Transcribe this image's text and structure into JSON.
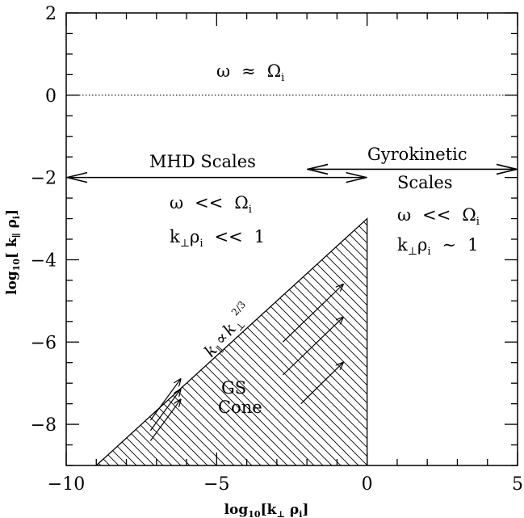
{
  "chart_data": {
    "type": "diagram",
    "xlabel": {
      "main": "log",
      "sub": "10",
      "rest": "[k",
      "perp": "⊥",
      "rho": " ρ",
      "i": "i",
      "end": "]"
    },
    "ylabel": {
      "main": "log",
      "sub": "10",
      "rest": "[ k",
      "par": "∥",
      "rho": " ρ",
      "i": "i",
      "end": "]"
    },
    "xlim": [
      -10,
      5
    ],
    "ylim": [
      -9,
      2
    ],
    "x_ticks": [
      "−10",
      "−5",
      "0",
      "5"
    ],
    "y_ticks": [
      "2",
      "0",
      "−2",
      "−4",
      "−6",
      "−8"
    ],
    "dotted_line": {
      "y": 0
    },
    "mhd_arrow": {
      "y": -2,
      "x_from": -10,
      "x_to": 0
    },
    "gk_arrow": {
      "y": -1.8,
      "x_from": -2,
      "x_to": 5
    },
    "cone": {
      "boundary_points": [
        [
          -9,
          -9
        ],
        [
          0,
          -3
        ]
      ],
      "right_x": 0,
      "slope_label": {
        "k": "k",
        "par": "∥",
        "prop": "∝",
        "k2": "k",
        "perp": "⊥",
        "exp": "2/3"
      }
    },
    "labels": {
      "omega_approx": {
        "omega": "ω",
        "approx": "≈",
        "Omega": "Ω",
        "sub": "i"
      },
      "mhd_title": "MHD Scales",
      "mhd_cond1": {
        "omega": "ω",
        "ll": "<<",
        "Omega": "Ω",
        "sub": "i"
      },
      "mhd_cond2": {
        "k": "k",
        "perp": "⊥",
        "rho": "ρ",
        "sub": "i",
        "ll": "<<",
        "one": "1"
      },
      "gk_title_1": "Gyrokinetic",
      "gk_title_2": "Scales",
      "gk_cond1": {
        "omega": "ω",
        "ll": "<<",
        "Omega": "Ω",
        "sub": "i"
      },
      "gk_cond2": {
        "k": "k",
        "perp": "⊥",
        "rho": "ρ",
        "sub": "i",
        "sim": "∼",
        "one": "1"
      },
      "gs_1": "GS",
      "gs_2": "Cone"
    },
    "small_arrows": [
      [
        [
          -7.2,
          -8.4
        ],
        [
          -6.2,
          -7.4
        ]
      ],
      [
        [
          -7.2,
          -8.15
        ],
        [
          -6.2,
          -7.15
        ]
      ],
      [
        [
          -7.2,
          -7.9
        ],
        [
          -6.2,
          -6.9
        ]
      ],
      [
        [
          -2.8,
          -6.0
        ],
        [
          -0.8,
          -4.6
        ]
      ],
      [
        [
          -2.8,
          -6.8
        ],
        [
          -0.8,
          -5.4
        ]
      ],
      [
        [
          -2.2,
          -7.5
        ],
        [
          -0.8,
          -6.5
        ]
      ]
    ]
  }
}
